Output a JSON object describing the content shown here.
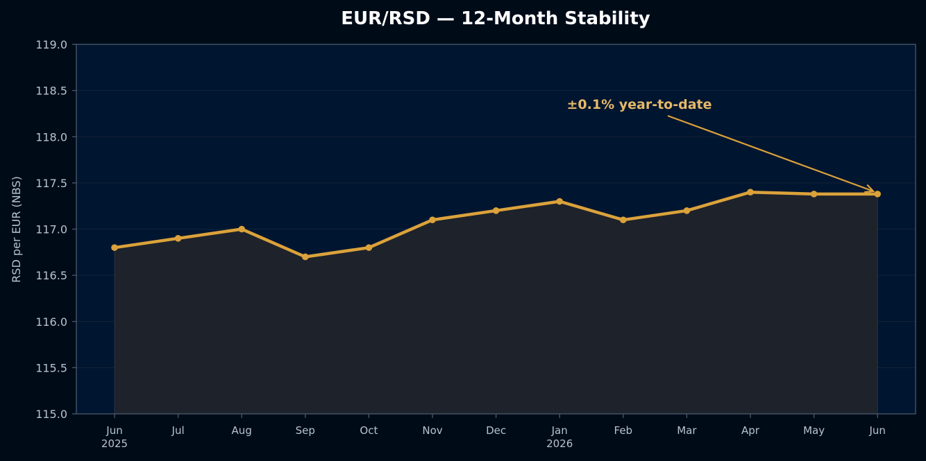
{
  "chart_data": {
    "type": "line",
    "title": "EUR/RSD — 12-Month Stability",
    "xlabel": "",
    "ylabel": "RSD per EUR (NBS)",
    "categories": [
      "Jun",
      "Jul",
      "Aug",
      "Sep",
      "Oct",
      "Nov",
      "Dec",
      "Jan",
      "Feb",
      "Mar",
      "Apr",
      "May",
      "Jun"
    ],
    "category_sublabels": [
      "2025",
      "",
      "",
      "",
      "",
      "",
      "",
      "2026",
      "",
      "",
      "",
      "",
      ""
    ],
    "series": [
      {
        "values": [
          116.8,
          116.9,
          117.0,
          116.7,
          116.8,
          117.1,
          117.2,
          117.3,
          117.1,
          117.2,
          117.4,
          117.38,
          117.38
        ]
      }
    ],
    "ylim": [
      115.0,
      119.0
    ],
    "yticks": [
      "115.0",
      "115.5",
      "116.0",
      "116.5",
      "117.0",
      "117.5",
      "118.0",
      "118.5",
      "119.0"
    ],
    "grid": true,
    "annotation": {
      "text": "±0.1% year-to-date",
      "target_index": 12
    },
    "colors": {
      "page_bg": "#000b18",
      "plot_bg": "#00152f",
      "line": "#dba23b",
      "fill": "#1e222b",
      "annotation": "#e6b96a",
      "axis": "#4a5a70",
      "grid": "#142338"
    }
  }
}
